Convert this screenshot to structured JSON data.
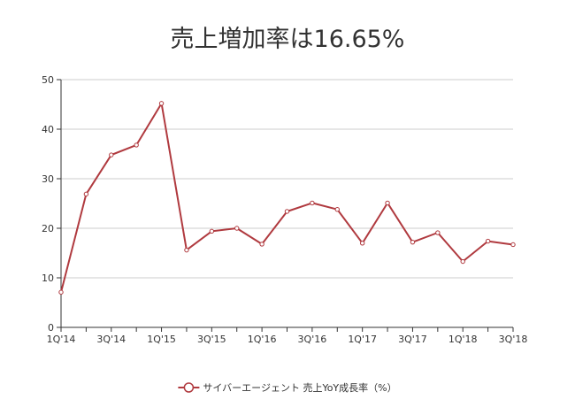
{
  "chart_data": {
    "type": "line",
    "title": "売上増加率は16.65%",
    "xlabel": "",
    "ylabel": "",
    "ylim": [
      0,
      50
    ],
    "yticks": [
      0,
      10,
      20,
      30,
      40,
      50
    ],
    "grid": true,
    "legend_position": "bottom",
    "categories": [
      "1Q'14",
      "2Q'14",
      "3Q'14",
      "4Q'14",
      "1Q'15",
      "2Q'15",
      "3Q'15",
      "4Q'15",
      "1Q'16",
      "2Q'16",
      "3Q'16",
      "4Q'16",
      "1Q'17",
      "2Q'17",
      "3Q'17",
      "4Q'17",
      "1Q'18",
      "2Q'18",
      "3Q'18"
    ],
    "tick_labels": [
      "1Q'14",
      "3Q'14",
      "1Q'15",
      "3Q'15",
      "1Q'16",
      "3Q'16",
      "1Q'17",
      "3Q'17",
      "1Q'18",
      "3Q'18"
    ],
    "series": [
      {
        "name": "サイバーエージェント 売上YoY成長率（%）",
        "color": "#b03a3f",
        "values": [
          7.1,
          26.9,
          34.8,
          36.8,
          45.2,
          15.6,
          19.4,
          20.0,
          16.8,
          23.4,
          25.1,
          23.8,
          17.0,
          25.1,
          17.2,
          19.1,
          13.3,
          17.4,
          16.7
        ]
      }
    ]
  }
}
